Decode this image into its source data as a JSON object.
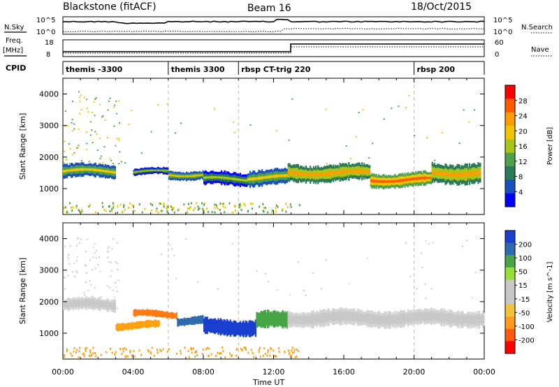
{
  "header": {
    "station": "Blackstone (fitACF)",
    "beam": "Beam 16",
    "date": "18/Oct/2015"
  },
  "left_labels": {
    "nsky": "N.Sky",
    "freq_line1": "Freq.",
    "freq_line2": "[MHz]",
    "cpid": "CPID"
  },
  "right_labels": {
    "nsearch": "N.Search",
    "nave": "Nave"
  },
  "noise_axis": {
    "top": "10^5",
    "bottom": "10^0"
  },
  "freq_axis": {
    "top": "18",
    "bottom": "8"
  },
  "nave_axis": {
    "top": "60",
    "bottom": "0"
  },
  "cpid_segments": [
    {
      "label": "themis -3300",
      "start_hour": 0
    },
    {
      "label": "themis 3300",
      "start_hour": 6
    },
    {
      "label": "rbsp CT-trig 220",
      "start_hour": 10
    },
    {
      "label": "rbsp 200",
      "start_hour": 20
    }
  ],
  "x_axis": {
    "label": "Time UT",
    "ticks": [
      "00:00",
      "04:00",
      "08:00",
      "12:00",
      "16:00",
      "20:00",
      "00:00"
    ]
  },
  "chart_data": [
    {
      "type": "heatmap",
      "name": "power",
      "ylabel": "Slant Range [km]",
      "yticks": [
        1000,
        2000,
        3000,
        4000
      ],
      "ylim": [
        180,
        4500
      ],
      "xlim_hours": [
        0,
        24
      ],
      "colorbar": {
        "label": "Power [dB]",
        "ticks": [
          "28",
          "24",
          "20",
          "16",
          "12",
          "8",
          "4"
        ],
        "colors": [
          "#ff0000",
          "#ff5a00",
          "#ff9d00",
          "#f1c400",
          "#aac418",
          "#4ea04a",
          "#2a7a58",
          "#1a4fbe",
          "#0000ff"
        ]
      },
      "bands": [
        {
          "t0": 0.0,
          "t1": 3.0,
          "center": 1550,
          "width": 420,
          "level": 3
        },
        {
          "t0": 4.0,
          "t1": 6.0,
          "center": 1520,
          "width": 200,
          "level": 4
        },
        {
          "t0": 6.0,
          "t1": 8.0,
          "center": 1450,
          "width": 260,
          "level": 3
        },
        {
          "t0": 8.0,
          "t1": 10.5,
          "center": 1300,
          "width": 420,
          "level": 4
        },
        {
          "t0": 10.5,
          "t1": 12.8,
          "center": 1350,
          "width": 480,
          "level": 3
        },
        {
          "t0": 12.8,
          "t1": 17.5,
          "center": 1500,
          "width": 520,
          "level": 2
        },
        {
          "t0": 17.5,
          "t1": 21.0,
          "center": 1280,
          "width": 430,
          "level": 1
        },
        {
          "t0": 21.0,
          "t1": 23.8,
          "center": 1500,
          "width": 600,
          "level": 2
        }
      ]
    },
    {
      "type": "heatmap",
      "name": "velocity",
      "ylabel": "Slant Range [km]",
      "yticks": [
        1000,
        2000,
        3000,
        4000
      ],
      "ylim": [
        180,
        4500
      ],
      "xlim_hours": [
        0,
        24
      ],
      "colorbar": {
        "label": "Velocity [m s^-1]",
        "ticks": [
          "200",
          "100",
          "50",
          "15",
          "-15",
          "-50",
          "-100",
          "-200"
        ],
        "colors": [
          "#1a3fd0",
          "#2d6ab0",
          "#47a447",
          "#98e034",
          "#c8c8c8",
          "#c8c8c8",
          "#f2c23a",
          "#ff9a1a",
          "#ff5a0d",
          "#ff0000"
        ]
      },
      "bands": [
        {
          "t0": 0.0,
          "t1": 3.0,
          "center": 1900,
          "width": 380,
          "color": "#c8c8c8"
        },
        {
          "t0": 3.0,
          "t1": 5.5,
          "center": 1250,
          "width": 220,
          "color": "#ffa010"
        },
        {
          "t0": 4.0,
          "t1": 6.5,
          "center": 1600,
          "width": 200,
          "color": "#ff7a10"
        },
        {
          "t0": 6.5,
          "t1": 8.0,
          "center": 1400,
          "width": 240,
          "color": "#2d6ab0"
        },
        {
          "t0": 8.0,
          "t1": 11.0,
          "center": 1200,
          "width": 480,
          "color": "#1a3fd0"
        },
        {
          "t0": 11.0,
          "t1": 12.8,
          "center": 1400,
          "width": 520,
          "color": "#47a447"
        },
        {
          "t0": 12.8,
          "t1": 24.0,
          "center": 1480,
          "width": 500,
          "color": "#c8c8c8"
        }
      ]
    }
  ]
}
